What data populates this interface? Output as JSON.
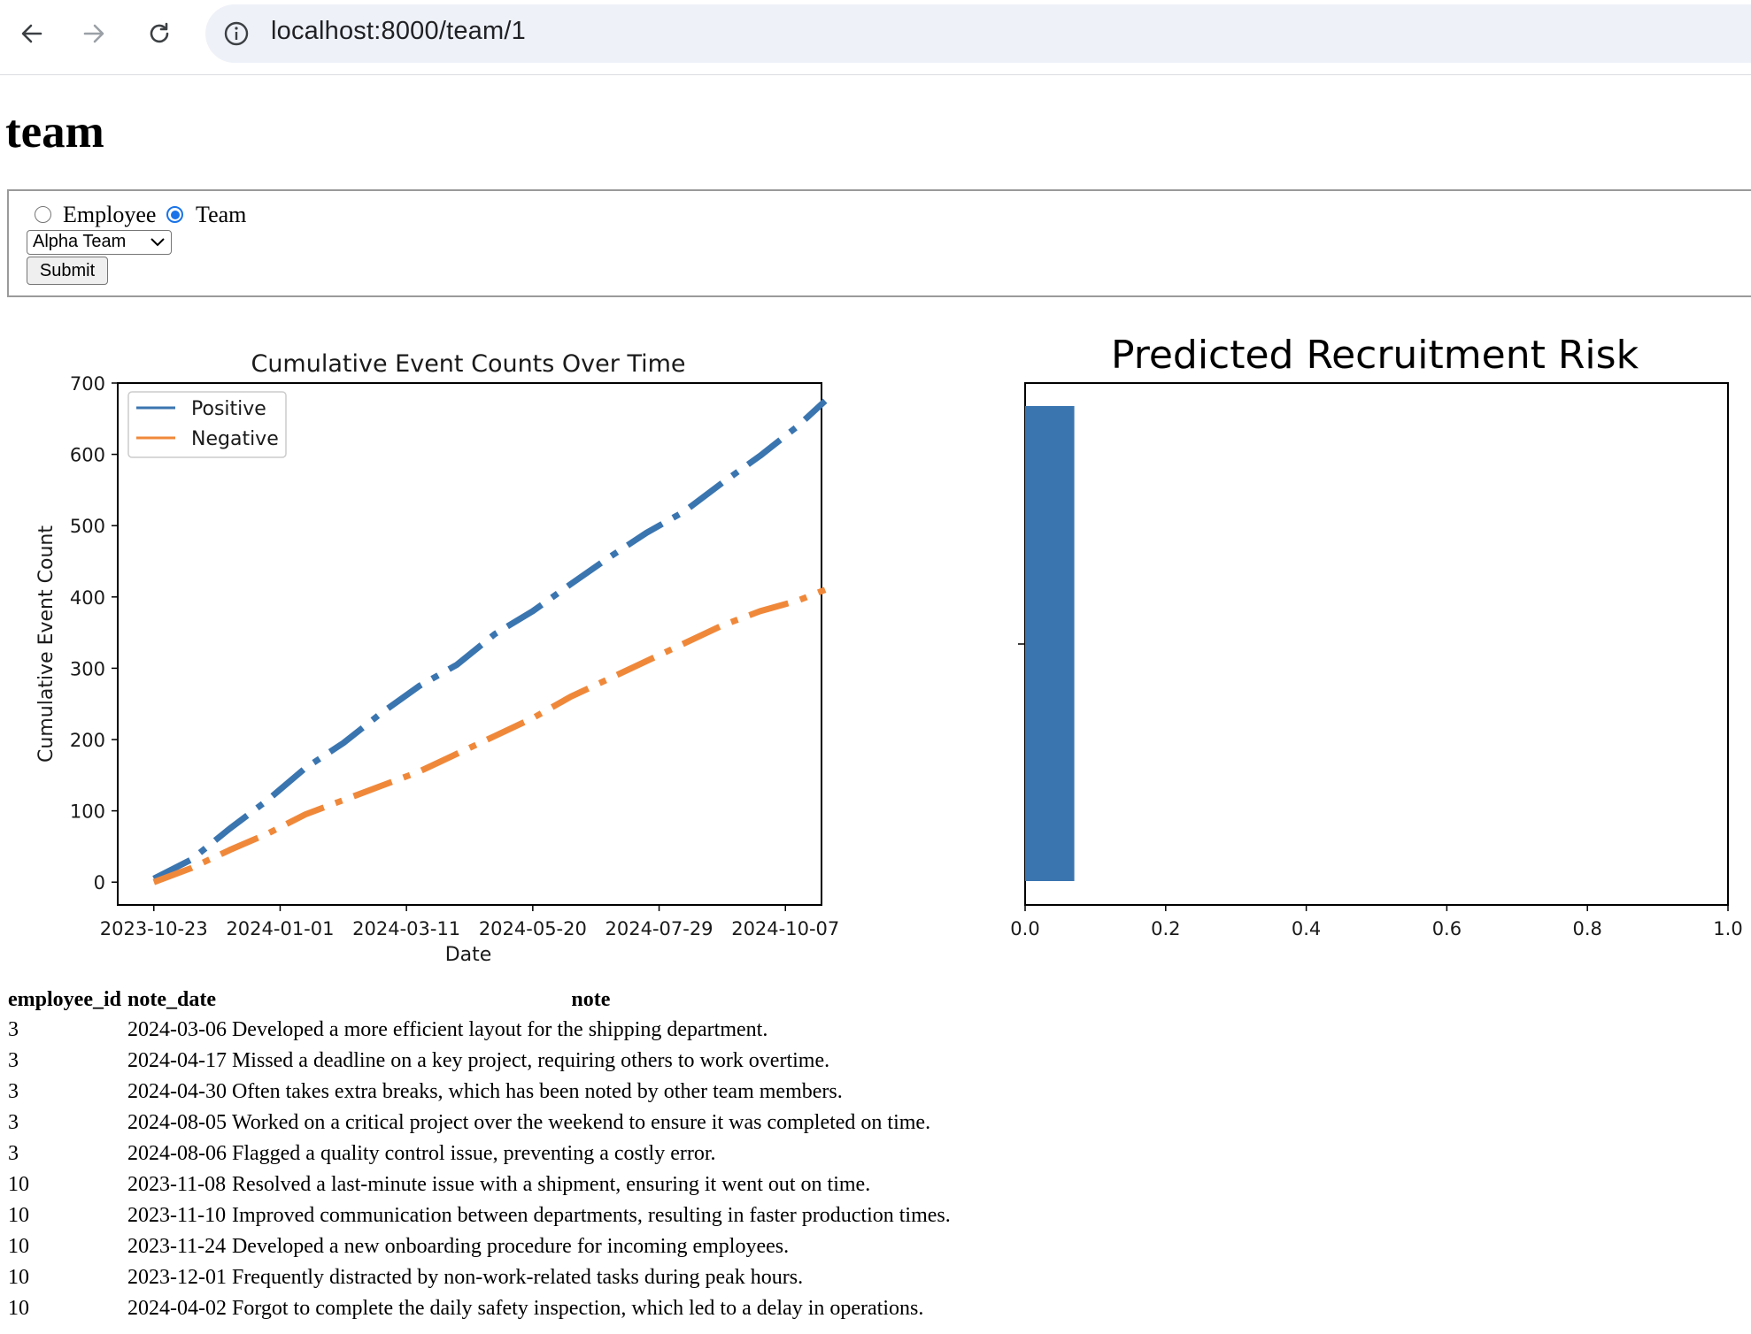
{
  "browser": {
    "url": "localhost:8000/team/1"
  },
  "page": {
    "title": "team"
  },
  "form": {
    "radio_employee_label": "Employee",
    "radio_team_label": "Team",
    "selected_mode": "Team",
    "select_value": "Alpha Team",
    "submit_label": "Submit"
  },
  "colors": {
    "positive": "#3a75b0",
    "negative": "#f0883a",
    "radio_accent": "#1a73e8"
  },
  "chart_data": [
    {
      "type": "line",
      "title": "Cumulative Event Counts Over Time",
      "xlabel": "Date",
      "ylabel": "Cumulative Event Count",
      "x_ticks": [
        "2023-10-23",
        "2024-01-01",
        "2024-03-11",
        "2024-05-20",
        "2024-07-29",
        "2024-10-07"
      ],
      "y_ticks": [
        0,
        100,
        200,
        300,
        400,
        500,
        600,
        700
      ],
      "ylim": [
        -32,
        700
      ],
      "xlim": [
        "2023-10-03",
        "2024-10-27"
      ],
      "legend": "upper-left",
      "series": [
        {
          "name": "Positive",
          "color": "#3a75b0",
          "x": [
            "2023-10-23",
            "2023-11-13",
            "2023-12-04",
            "2023-12-25",
            "2024-01-15",
            "2024-02-05",
            "2024-02-26",
            "2024-03-18",
            "2024-04-08",
            "2024-04-29",
            "2024-05-20",
            "2024-06-10",
            "2024-07-01",
            "2024-07-22",
            "2024-08-12",
            "2024-09-02",
            "2024-09-23",
            "2024-10-14",
            "2024-10-29"
          ],
          "y": [
            5,
            32,
            75,
            115,
            160,
            195,
            237,
            275,
            305,
            348,
            380,
            418,
            455,
            490,
            520,
            560,
            598,
            640,
            675
          ]
        },
        {
          "name": "Negative",
          "color": "#f0883a",
          "x": [
            "2023-10-23",
            "2023-11-13",
            "2023-12-04",
            "2023-12-25",
            "2024-01-15",
            "2024-02-05",
            "2024-02-26",
            "2024-03-18",
            "2024-04-08",
            "2024-04-29",
            "2024-05-20",
            "2024-06-10",
            "2024-07-01",
            "2024-07-22",
            "2024-08-12",
            "2024-09-02",
            "2024-09-23",
            "2024-10-14",
            "2024-10-29"
          ],
          "y": [
            0,
            20,
            45,
            68,
            95,
            115,
            135,
            155,
            180,
            205,
            230,
            260,
            285,
            310,
            335,
            360,
            380,
            395,
            410
          ]
        }
      ]
    },
    {
      "type": "bar",
      "orientation": "horizontal",
      "title": "Predicted Recruitment Risk",
      "xlabel": "",
      "ylabel": "",
      "x_ticks": [
        "0.0",
        "0.2",
        "0.4",
        "0.6",
        "0.8",
        "1.0"
      ],
      "xlim": [
        0,
        1
      ],
      "categories": [
        ""
      ],
      "values": [
        0.07
      ],
      "color": "#3a75b0"
    }
  ],
  "table": {
    "headers": [
      "employee_id",
      "note_date",
      "note"
    ],
    "rows": [
      [
        "3",
        "2024-03-06",
        "Developed a more efficient layout for the shipping department."
      ],
      [
        "3",
        "2024-04-17",
        "Missed a deadline on a key project, requiring others to work overtime."
      ],
      [
        "3",
        "2024-04-30",
        "Often takes extra breaks, which has been noted by other team members."
      ],
      [
        "3",
        "2024-08-05",
        "Worked on a critical project over the weekend to ensure it was completed on time."
      ],
      [
        "3",
        "2024-08-06",
        "Flagged a quality control issue, preventing a costly error."
      ],
      [
        "10",
        "2023-11-08",
        "Resolved a last-minute issue with a shipment, ensuring it went out on time."
      ],
      [
        "10",
        "2023-11-10",
        "Improved communication between departments, resulting in faster production times."
      ],
      [
        "10",
        "2023-11-24",
        "Developed a new onboarding procedure for incoming employees."
      ],
      [
        "10",
        "2023-12-01",
        "Frequently distracted by non-work-related tasks during peak hours."
      ],
      [
        "10",
        "2024-04-02",
        "Forgot to complete the daily safety inspection, which led to a delay in operations."
      ]
    ]
  }
}
